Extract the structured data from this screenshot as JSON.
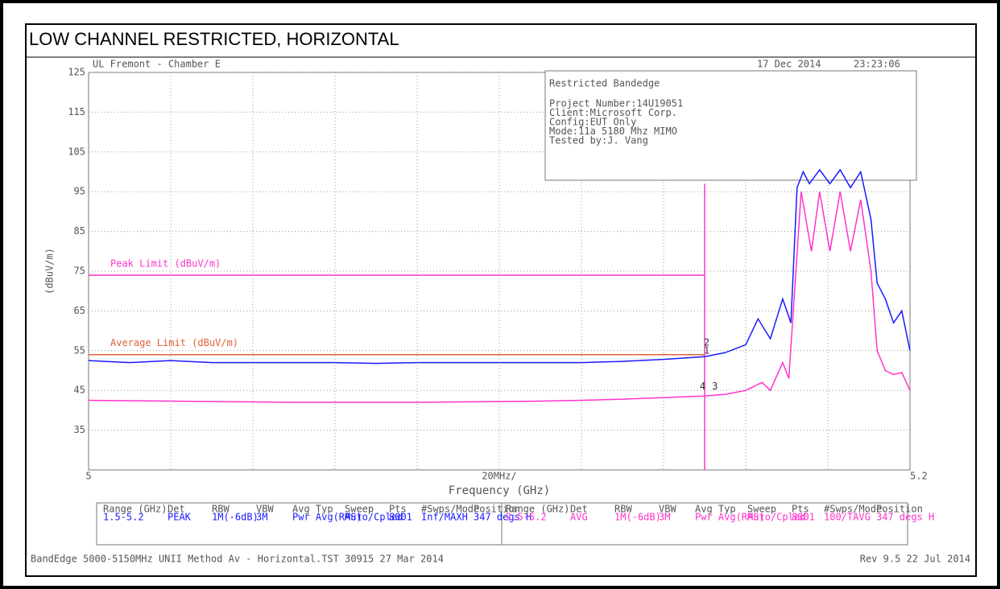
{
  "chart_data": {
    "type": "line",
    "title": "LOW CHANNEL RESTRICTED, HORIZONTAL",
    "site": "UL Fremont - Chamber E",
    "date": "17 Dec 2014",
    "time": "23:23:06",
    "info_box": {
      "title": "Restricted Bandedge",
      "lines": [
        "Project Number:14U19051",
        "Client:Microsoft Corp.",
        "Config:EUT Only",
        "Mode:11a 5180 Mhz MIMO",
        "Tested by:J. Vang"
      ]
    },
    "y_label": "(dBuV/m)",
    "x_label": "Frequency (GHz)",
    "x_division": "20MHz/",
    "xlim": [
      5,
      5.2
    ],
    "xticks": [
      5,
      5.2
    ],
    "ylim": [
      25,
      125
    ],
    "yticks": [
      35,
      45,
      55,
      65,
      75,
      85,
      95,
      105,
      115,
      125
    ],
    "grid": true,
    "series": [
      {
        "name": "Peak Limit (dBuV/m)",
        "color": "#ff33cc",
        "x": [
          5,
          5.15
        ],
        "values": [
          74,
          74
        ]
      },
      {
        "name": "Average Limit (dBuV/m)",
        "color": "#e0603a",
        "x": [
          5,
          5.15
        ],
        "values": [
          54,
          54
        ]
      },
      {
        "color": "#ff33cc",
        "x": [
          5.15,
          5.15
        ],
        "values": [
          25,
          97
        ]
      },
      {
        "color": "#1a1aff",
        "x": [
          5,
          5.01,
          5.02,
          5.03,
          5.04,
          5.05,
          5.06,
          5.07,
          5.08,
          5.09,
          5.1,
          5.11,
          5.12,
          5.13,
          5.14,
          5.15,
          5.155,
          5.16,
          5.163,
          5.166,
          5.169,
          5.171,
          5.1725,
          5.174,
          5.1755,
          5.178,
          5.1805,
          5.183,
          5.1855,
          5.188,
          5.1905,
          5.192,
          5.194,
          5.196,
          5.198,
          5.2
        ],
        "values": [
          52.5,
          52,
          52.5,
          52,
          52,
          52,
          52,
          51.8,
          52,
          52,
          52,
          52,
          52,
          52.3,
          52.8,
          53.5,
          54.5,
          56.5,
          63,
          58,
          68,
          62,
          96,
          100,
          97,
          100.5,
          97,
          100.5,
          96,
          100,
          88,
          72,
          68,
          62,
          65,
          55
        ]
      },
      {
        "color": "#ff33cc",
        "x": [
          5,
          5.01,
          5.02,
          5.03,
          5.04,
          5.05,
          5.06,
          5.07,
          5.08,
          5.09,
          5.1,
          5.11,
          5.12,
          5.13,
          5.14,
          5.15,
          5.155,
          5.16,
          5.164,
          5.166,
          5.169,
          5.1705,
          5.1735,
          5.176,
          5.178,
          5.1805,
          5.183,
          5.1855,
          5.188,
          5.1905,
          5.192,
          5.194,
          5.196,
          5.198,
          5.2
        ],
        "values": [
          42.5,
          42.4,
          42.3,
          42.2,
          42.1,
          42,
          42,
          42,
          42,
          42.1,
          42.2,
          42.3,
          42.5,
          42.8,
          43.2,
          43.6,
          44,
          45,
          47,
          45,
          52,
          48,
          95,
          80,
          95,
          80,
          95,
          80,
          93,
          75,
          55,
          50,
          49,
          49.5,
          45
        ]
      }
    ],
    "markers": [
      {
        "label": "2",
        "x": 5.1505,
        "y": 57
      },
      {
        "label": "1",
        "x": 5.1505,
        "y": 55
      },
      {
        "label": "4",
        "x": 5.1495,
        "y": 46
      },
      {
        "label": "3",
        "x": 5.1525,
        "y": 46
      }
    ],
    "settings_table": {
      "headers": [
        "Range (GHz)",
        "Det",
        "RBW",
        "VBW",
        "Avg Typ",
        "Sweep",
        "Pts",
        "#Swps/Mode",
        "Position"
      ],
      "rows": [
        [
          "1.5-5.2",
          "PEAK",
          "1M(-6dB)",
          "3M",
          "Pwr Avg(RMS)",
          "Auto/Cpled",
          "8001",
          "Inf/MAXH",
          "347 degs H"
        ],
        [
          "2.5-5.2",
          "AVG",
          "1M(-6dB)",
          "3M",
          "Pwr Avg(RMS)",
          "Auto/Cpled",
          "8001",
          "100/TAVG",
          "347 degs H"
        ]
      ]
    },
    "footer_left": "BandEdge 5000-5150MHz UNII Method Av - Horizontal.TST 30915 27 Mar 2014",
    "footer_right": "Rev 9.5 22 Jul 2014"
  }
}
